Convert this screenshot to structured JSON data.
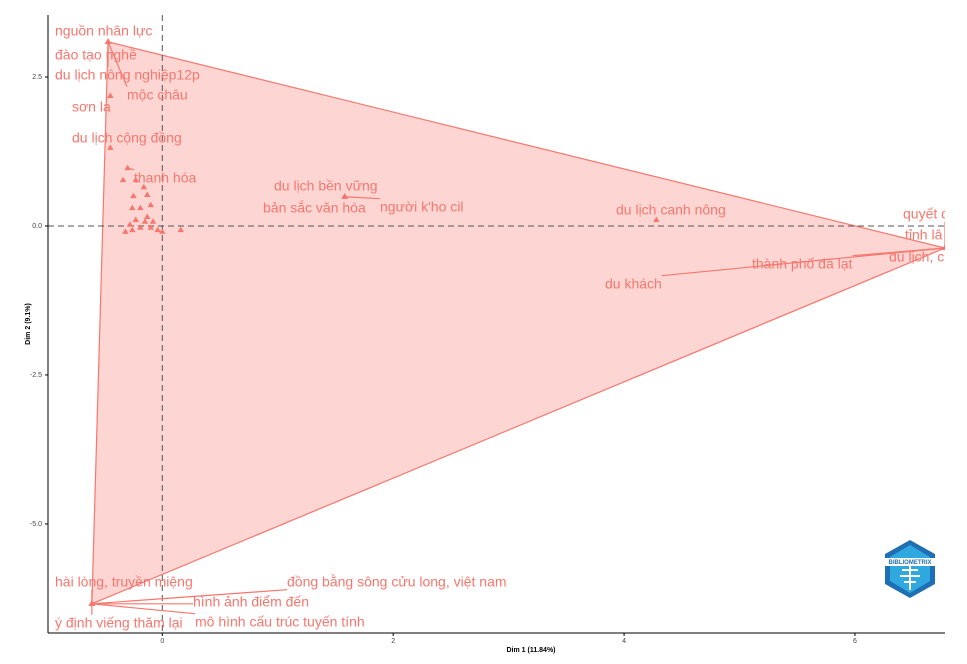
{
  "chart_data": {
    "type": "scatter",
    "x_label": "Dim 1 (11.84%)",
    "y_label": "Dim 2 (9.1%)",
    "color": "#f8766d",
    "xlim": [
      -0.99,
      6.78
    ],
    "ylim": [
      -6.83,
      3.54
    ],
    "xticks": [
      0,
      2,
      4,
      6
    ],
    "yticks": [
      2.5,
      {
        "value": 0,
        "label": "0.0"
      },
      -2.5,
      {
        "value": -5,
        "label": "-5.0"
      }
    ],
    "grid": false,
    "labels": [
      "nguồn nhân lực",
      "đào tạo nghề",
      "du lịch nông nghiệp12p",
      "mộc châu",
      "sơn la",
      "du lịch cộng đồng",
      "thanh hóa",
      "du lịch bền vững",
      "bản sắc văn hóa",
      "người k'ho cil",
      "du lịch canh nông",
      "quyết đ",
      "tỉnh lâ",
      "du lịch, c",
      "thành phố đà lạt",
      "du khách",
      "hài lòng, truyền miệng",
      "đồng bằng sông cửu long, việt nam",
      "hình ảnh điểm đến",
      "ý định viếng thăm lại",
      "mô hình cấu trúc tuyến tính",
      null,
      null,
      null,
      null,
      null,
      null,
      null,
      null,
      null,
      null,
      null,
      null,
      null,
      null,
      null,
      null,
      null,
      null,
      null,
      null
    ],
    "x": [
      -0.47,
      -0.47,
      -0.47,
      -0.47,
      -0.45,
      -0.45,
      -0.3,
      1.58,
      1.58,
      1.58,
      4.28,
      6.78,
      6.78,
      6.78,
      6.78,
      6.78,
      -0.61,
      -0.61,
      -0.61,
      -0.61,
      -0.61,
      -0.34,
      -0.23,
      -0.16,
      -0.13,
      -0.25,
      -0.26,
      -0.19,
      -0.1,
      -0.13,
      -0.15,
      -0.08,
      -0.23,
      -0.28,
      -0.32,
      -0.26,
      -0.19,
      -0.1,
      -0.04,
      0.0,
      0.16
    ],
    "y": [
      3.09,
      3.09,
      3.09,
      3.09,
      2.18,
      1.31,
      0.97,
      0.49,
      0.49,
      0.49,
      0.1,
      -0.37,
      -0.37,
      -0.37,
      -0.37,
      -0.37,
      -6.34,
      -6.34,
      -6.34,
      -6.34,
      -6.34,
      0.77,
      0.77,
      0.65,
      0.52,
      0.5,
      0.3,
      0.3,
      0.35,
      0.15,
      0.07,
      0.07,
      0.1,
      0.02,
      -0.1,
      -0.07,
      -0.03,
      -0.03,
      -0.07,
      -0.1,
      -0.07
    ],
    "watermark": "BIBLIOMETRIX"
  }
}
